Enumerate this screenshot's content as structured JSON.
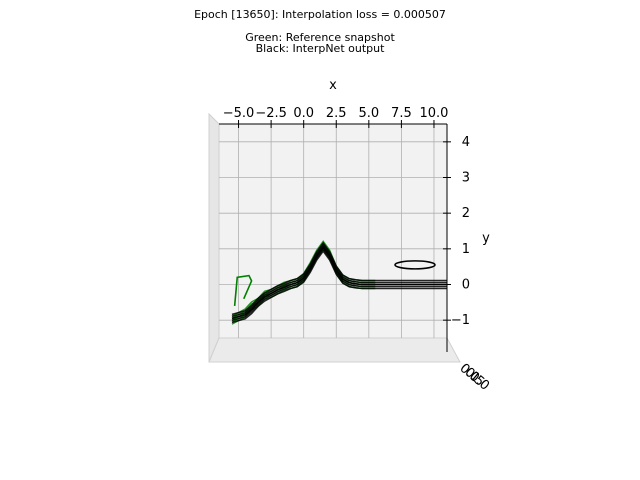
{
  "titles": {
    "line1": "Epoch [13650]: Interpolation loss = 0.000507",
    "line2": "Green: Reference snapshot",
    "line3": "Black: InterpNet output"
  },
  "chart_data": {
    "type": "line",
    "projection": "3d",
    "xlabel": "x",
    "ylabel": "y",
    "zlabel": "",
    "xlim": [
      -6.5,
      11.0
    ],
    "ylim": [
      -1.5,
      4.5
    ],
    "x_ticks": [
      "−5.0",
      "−2.5",
      "0.0",
      "2.5",
      "5.0",
      "7.5",
      "10.0"
    ],
    "y_ticks": [
      "−1",
      "0",
      "1",
      "2",
      "3",
      "4"
    ],
    "z_ticks": [
      "0.0",
      "0.5",
      "1.0"
    ],
    "grid": true,
    "series": [
      {
        "color": "#008000",
        "description_series": "reference",
        "x": [
          -5.5,
          -5.0,
          -4.5,
          -4.0,
          -3.5,
          -3.0,
          -2.5,
          -2.0,
          -1.5,
          -1.0,
          -0.5,
          0.0,
          0.5,
          1.0,
          1.5,
          2.0,
          2.5,
          3.0,
          3.5,
          4.0,
          4.5,
          5.0,
          5.5
        ],
        "y": [
          -1.0,
          -0.9,
          -0.8,
          -0.6,
          -0.5,
          -0.3,
          -0.25,
          -0.15,
          -0.05,
          0.0,
          0.05,
          0.2,
          0.5,
          0.85,
          1.1,
          0.85,
          0.4,
          0.15,
          0.05,
          0.02,
          0.0,
          0.0,
          0.0
        ]
      },
      {
        "color": "#000000",
        "description_series": "model",
        "x": [
          -5.5,
          -5.0,
          -4.5,
          -4.0,
          -3.5,
          -3.0,
          -2.5,
          -2.0,
          -1.5,
          -1.0,
          -0.5,
          0.0,
          0.5,
          1.0,
          1.5,
          2.0,
          2.5,
          3.0,
          3.5,
          4.0,
          4.5,
          5.0,
          5.5,
          6.0,
          7.0,
          8.0,
          9.0,
          10.0,
          11.0
        ],
        "y": [
          -0.95,
          -0.9,
          -0.85,
          -0.7,
          -0.5,
          -0.35,
          -0.25,
          -0.15,
          -0.08,
          0.0,
          0.05,
          0.18,
          0.45,
          0.8,
          1.05,
          0.8,
          0.4,
          0.15,
          0.05,
          0.02,
          0.0,
          0.0,
          0.0,
          0.0,
          0.0,
          0.0,
          0.0,
          0.0,
          0.0
        ]
      }
    ]
  }
}
